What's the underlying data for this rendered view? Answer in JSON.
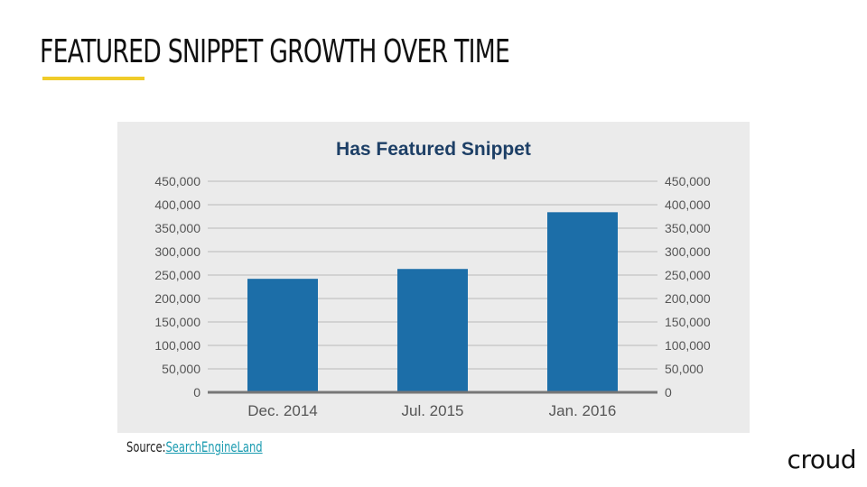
{
  "slide": {
    "title": "FEATURED SNIPPET GROWTH OVER TIME",
    "source_prefix": "Source:",
    "source_link": "SearchEngineLand",
    "logo": "croud",
    "accent_color": "#f0cc2a",
    "link_color": "#1a9bb0"
  },
  "chart_data": {
    "type": "bar",
    "title": "Has Featured Snippet",
    "categories": [
      "Dec. 2014",
      "Jul. 2015",
      "Jan. 2016"
    ],
    "values": [
      242000,
      263000,
      384000
    ],
    "ylim": [
      0,
      450000
    ],
    "yticks": [
      "0",
      "50,000",
      "100,000",
      "150,000",
      "200,000",
      "250,000",
      "300,000",
      "350,000",
      "400,000",
      "450,000"
    ],
    "ytick_values": [
      0,
      50000,
      100000,
      150000,
      200000,
      250000,
      300000,
      350000,
      400000,
      450000
    ],
    "dual_y_axis": true,
    "grid": true,
    "bar_color": "#1c6ea8",
    "title_color": "#1d3f66",
    "panel_color": "#ebebeb"
  }
}
